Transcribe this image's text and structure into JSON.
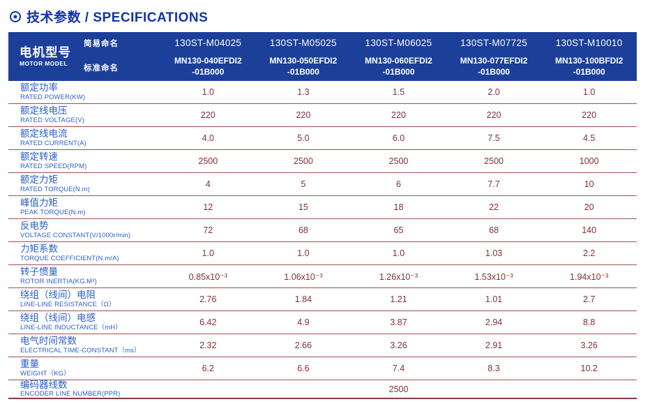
{
  "title": {
    "full": "技术参数 / SPECIFICATIONS"
  },
  "colors": {
    "header_bg": "#1c3f9a",
    "title_blue": "#1233a8",
    "label_blue": "#2a5ec9",
    "value_maroon": "#823030",
    "divider_maroon": "#a04e4e"
  },
  "table": {
    "header": {
      "model_label_zh": "电机型号",
      "model_label_en": "MOTOR MODEL",
      "simple_name_label": "简易命名",
      "standard_name_label": "标准命名",
      "columns": [
        {
          "simple": "130ST-M04025",
          "standard": "MN130-040EFDI2\n-01B000"
        },
        {
          "simple": "130ST-M05025",
          "standard": "MN130-050EFDI2\n-01B000"
        },
        {
          "simple": "130ST-M06025",
          "standard": "MN130-060EFDI2\n-01B000"
        },
        {
          "simple": "130ST-M07725",
          "standard": "MN130-077EFDI2\n-01B000"
        },
        {
          "simple": "130ST-M10010",
          "standard": "MN130-100BFDI2\n-01B000"
        }
      ]
    },
    "rows": [
      {
        "zh": "额定功率",
        "en": "RATED POWER(KW)",
        "values": [
          "1.0",
          "1.3",
          "1.5",
          "2.0",
          "1.0"
        ]
      },
      {
        "zh": "额定线电压",
        "en": "RATED VOLTAGE(V)",
        "values": [
          "220",
          "220",
          "220",
          "220",
          "220"
        ]
      },
      {
        "zh": "额定线电流",
        "en": "RATED CURRENT(A)",
        "values": [
          "4.0",
          "5.0",
          "6.0",
          "7.5",
          "4.5"
        ]
      },
      {
        "zh": "额定转速",
        "en": "RATED SPEED(RPM)",
        "values": [
          "2500",
          "2500",
          "2500",
          "2500",
          "1000"
        ]
      },
      {
        "zh": "额定力矩",
        "en": "RATED TORQUE(N.m)",
        "values": [
          "4",
          "5",
          "6",
          "7.7",
          "10"
        ]
      },
      {
        "zh": "峰值力矩",
        "en": "PEAK TORQUE(N.m)",
        "values": [
          "12",
          "15",
          "18",
          "22",
          "20"
        ]
      },
      {
        "zh": "反电势",
        "en": "VOLTAGE CONSTANT(V/1000r/min)",
        "values": [
          "72",
          "68",
          "65",
          "68",
          "140"
        ]
      },
      {
        "zh": "力矩系数",
        "en": "TORQUE COEFFICIENT(N.m/A)",
        "values": [
          "1.0",
          "1.0",
          "1.0",
          "1.03",
          "2.2"
        ]
      },
      {
        "zh": "转子惯量",
        "en": "ROTOR INERTIA(KG.M²)",
        "values": [
          "0.85x10⁻³",
          "1.06x10⁻³",
          "1.26x10⁻³",
          "1.53x10⁻³",
          "1.94x10⁻³"
        ]
      },
      {
        "zh": "绕组（线间）电阻",
        "en": "LINE-LINE RESISTANCE（Ω）",
        "values": [
          "2.76",
          "1.84",
          "1.21",
          "1.01",
          "2.7"
        ]
      },
      {
        "zh": "绕组（线间）电感",
        "en": "LINE-LINE INDUCTANCE（mH）",
        "values": [
          "6.42",
          "4.9",
          "3.87",
          "2.94",
          "8.8"
        ]
      },
      {
        "zh": "电气时间常数",
        "en": "ELECTRICAL TIME-CONSTANT（ms）",
        "values": [
          "2.32",
          "2.66",
          "3.26",
          "2.91",
          "3.26"
        ]
      },
      {
        "zh": "重量",
        "en": "WEIGHT（KG）",
        "values": [
          "6.2",
          "6.6",
          "7.4",
          "8.3",
          "10.2"
        ]
      }
    ],
    "encoder_row": {
      "zh": "编码器线数",
      "en": "ENCODER LINE NUMBER(PPR)",
      "value": "2500"
    }
  }
}
